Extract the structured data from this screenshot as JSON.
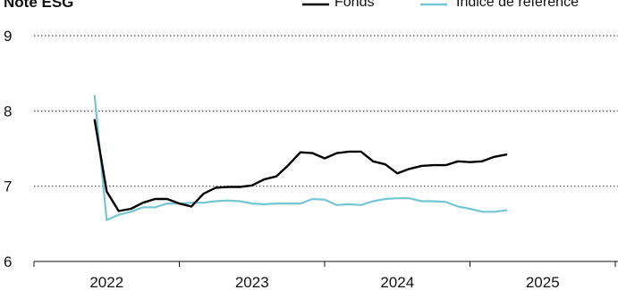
{
  "chart_data": {
    "type": "line",
    "title": "Note ESG",
    "xlabel": "",
    "ylabel": "",
    "ylim": [
      6,
      9
    ],
    "y_ticks": [
      "6",
      "7",
      "8",
      "9"
    ],
    "x_ticks": [
      "2022",
      "2023",
      "2024",
      "2025"
    ],
    "grid": "horizontal dotted",
    "legend_position": "top-right",
    "series": [
      {
        "name": "Fonds",
        "color": "#000000",
        "x": [
          2021.917,
          2022.0,
          2022.083,
          2022.167,
          2022.25,
          2022.333,
          2022.417,
          2022.5,
          2022.583,
          2022.667,
          2022.75,
          2022.833,
          2022.917,
          2023.0,
          2023.083,
          2023.167,
          2023.25,
          2023.333,
          2023.417,
          2023.5,
          2023.583,
          2023.667,
          2023.75,
          2023.833,
          2023.917,
          2024.0,
          2024.083,
          2024.167,
          2024.25,
          2024.333,
          2024.417,
          2024.5,
          2024.583,
          2024.667,
          2024.75,
          2024.833,
          2024.917
        ],
        "values": [
          7.88,
          6.93,
          6.67,
          6.7,
          6.78,
          6.83,
          6.83,
          6.77,
          6.73,
          6.9,
          6.98,
          6.99,
          6.99,
          7.01,
          7.09,
          7.13,
          7.28,
          7.45,
          7.44,
          7.37,
          7.44,
          7.46,
          7.46,
          7.33,
          7.29,
          7.17,
          7.23,
          7.27,
          7.28,
          7.28,
          7.33,
          7.32,
          7.33,
          7.39,
          7.42,
          null,
          null
        ]
      },
      {
        "name": "Indice de référence",
        "color": "#74c6d4",
        "x": [
          2021.917,
          2022.0,
          2022.083,
          2022.167,
          2022.25,
          2022.333,
          2022.417,
          2022.5,
          2022.583,
          2022.667,
          2022.75,
          2022.833,
          2022.917,
          2023.0,
          2023.083,
          2023.167,
          2023.25,
          2023.333,
          2023.417,
          2023.5,
          2023.583,
          2023.667,
          2023.75,
          2023.833,
          2023.917,
          2024.0,
          2024.083,
          2024.167,
          2024.25,
          2024.333,
          2024.417,
          2024.5,
          2024.583,
          2024.667,
          2024.75,
          2024.833,
          2024.917
        ],
        "values": [
          8.2,
          6.55,
          6.62,
          6.66,
          6.72,
          6.72,
          6.77,
          6.77,
          6.78,
          6.78,
          6.8,
          6.81,
          6.8,
          6.77,
          6.76,
          6.77,
          6.77,
          6.77,
          6.83,
          6.82,
          6.75,
          6.76,
          6.75,
          6.8,
          6.83,
          6.84,
          6.84,
          6.8,
          6.8,
          6.79,
          6.73,
          6.7,
          6.66,
          6.66,
          6.68,
          null,
          null
        ]
      }
    ]
  }
}
